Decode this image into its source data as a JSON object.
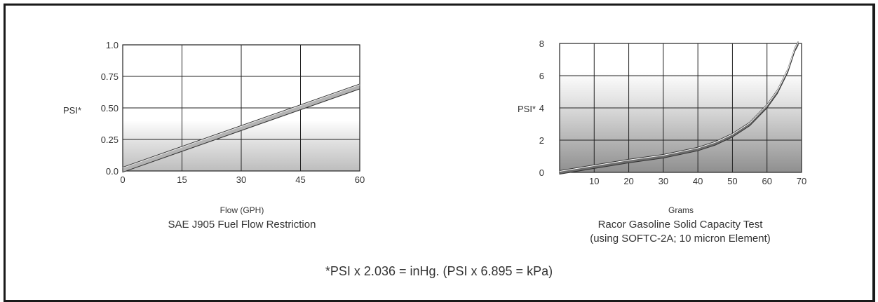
{
  "chart_data": [
    {
      "type": "line",
      "title": "SAE J905 Fuel Flow Restriction",
      "xlabel": "Flow (GPH)",
      "ylabel": "PSI*",
      "xlim": [
        0,
        60
      ],
      "ylim": [
        0,
        1.0
      ],
      "x_ticks": [
        "0",
        "15",
        "30",
        "45",
        "60"
      ],
      "y_ticks": [
        "0.0",
        "0.25",
        "0.50",
        "0.75",
        "1.0"
      ],
      "grid": true,
      "series": [
        {
          "x": [
            0,
            60
          ],
          "y": [
            0.01,
            0.67
          ]
        }
      ]
    },
    {
      "type": "line",
      "title": "Racor Gasoline Solid Capacity Test",
      "subtitle": "(using SOFTC-2A; 10 micron Element)",
      "xlabel": "Grams",
      "ylabel": "PSI*",
      "xlim": [
        0,
        70
      ],
      "ylim": [
        0,
        8
      ],
      "x_ticks": [
        "10",
        "20",
        "30",
        "40",
        "50",
        "60",
        "70"
      ],
      "y_ticks": [
        "0",
        "2",
        "4",
        "6",
        "8"
      ],
      "grid": true,
      "series": [
        {
          "x": [
            0,
            10,
            20,
            30,
            40,
            45,
            50,
            55,
            60,
            63,
            66,
            68,
            69
          ],
          "y": [
            0,
            0.35,
            0.7,
            1.0,
            1.45,
            1.8,
            2.3,
            3.0,
            4.1,
            5.0,
            6.3,
            7.6,
            8.0
          ]
        }
      ]
    }
  ],
  "footnote": "*PSI x 2.036 = inHg.  (PSI x 6.895 = kPa)"
}
